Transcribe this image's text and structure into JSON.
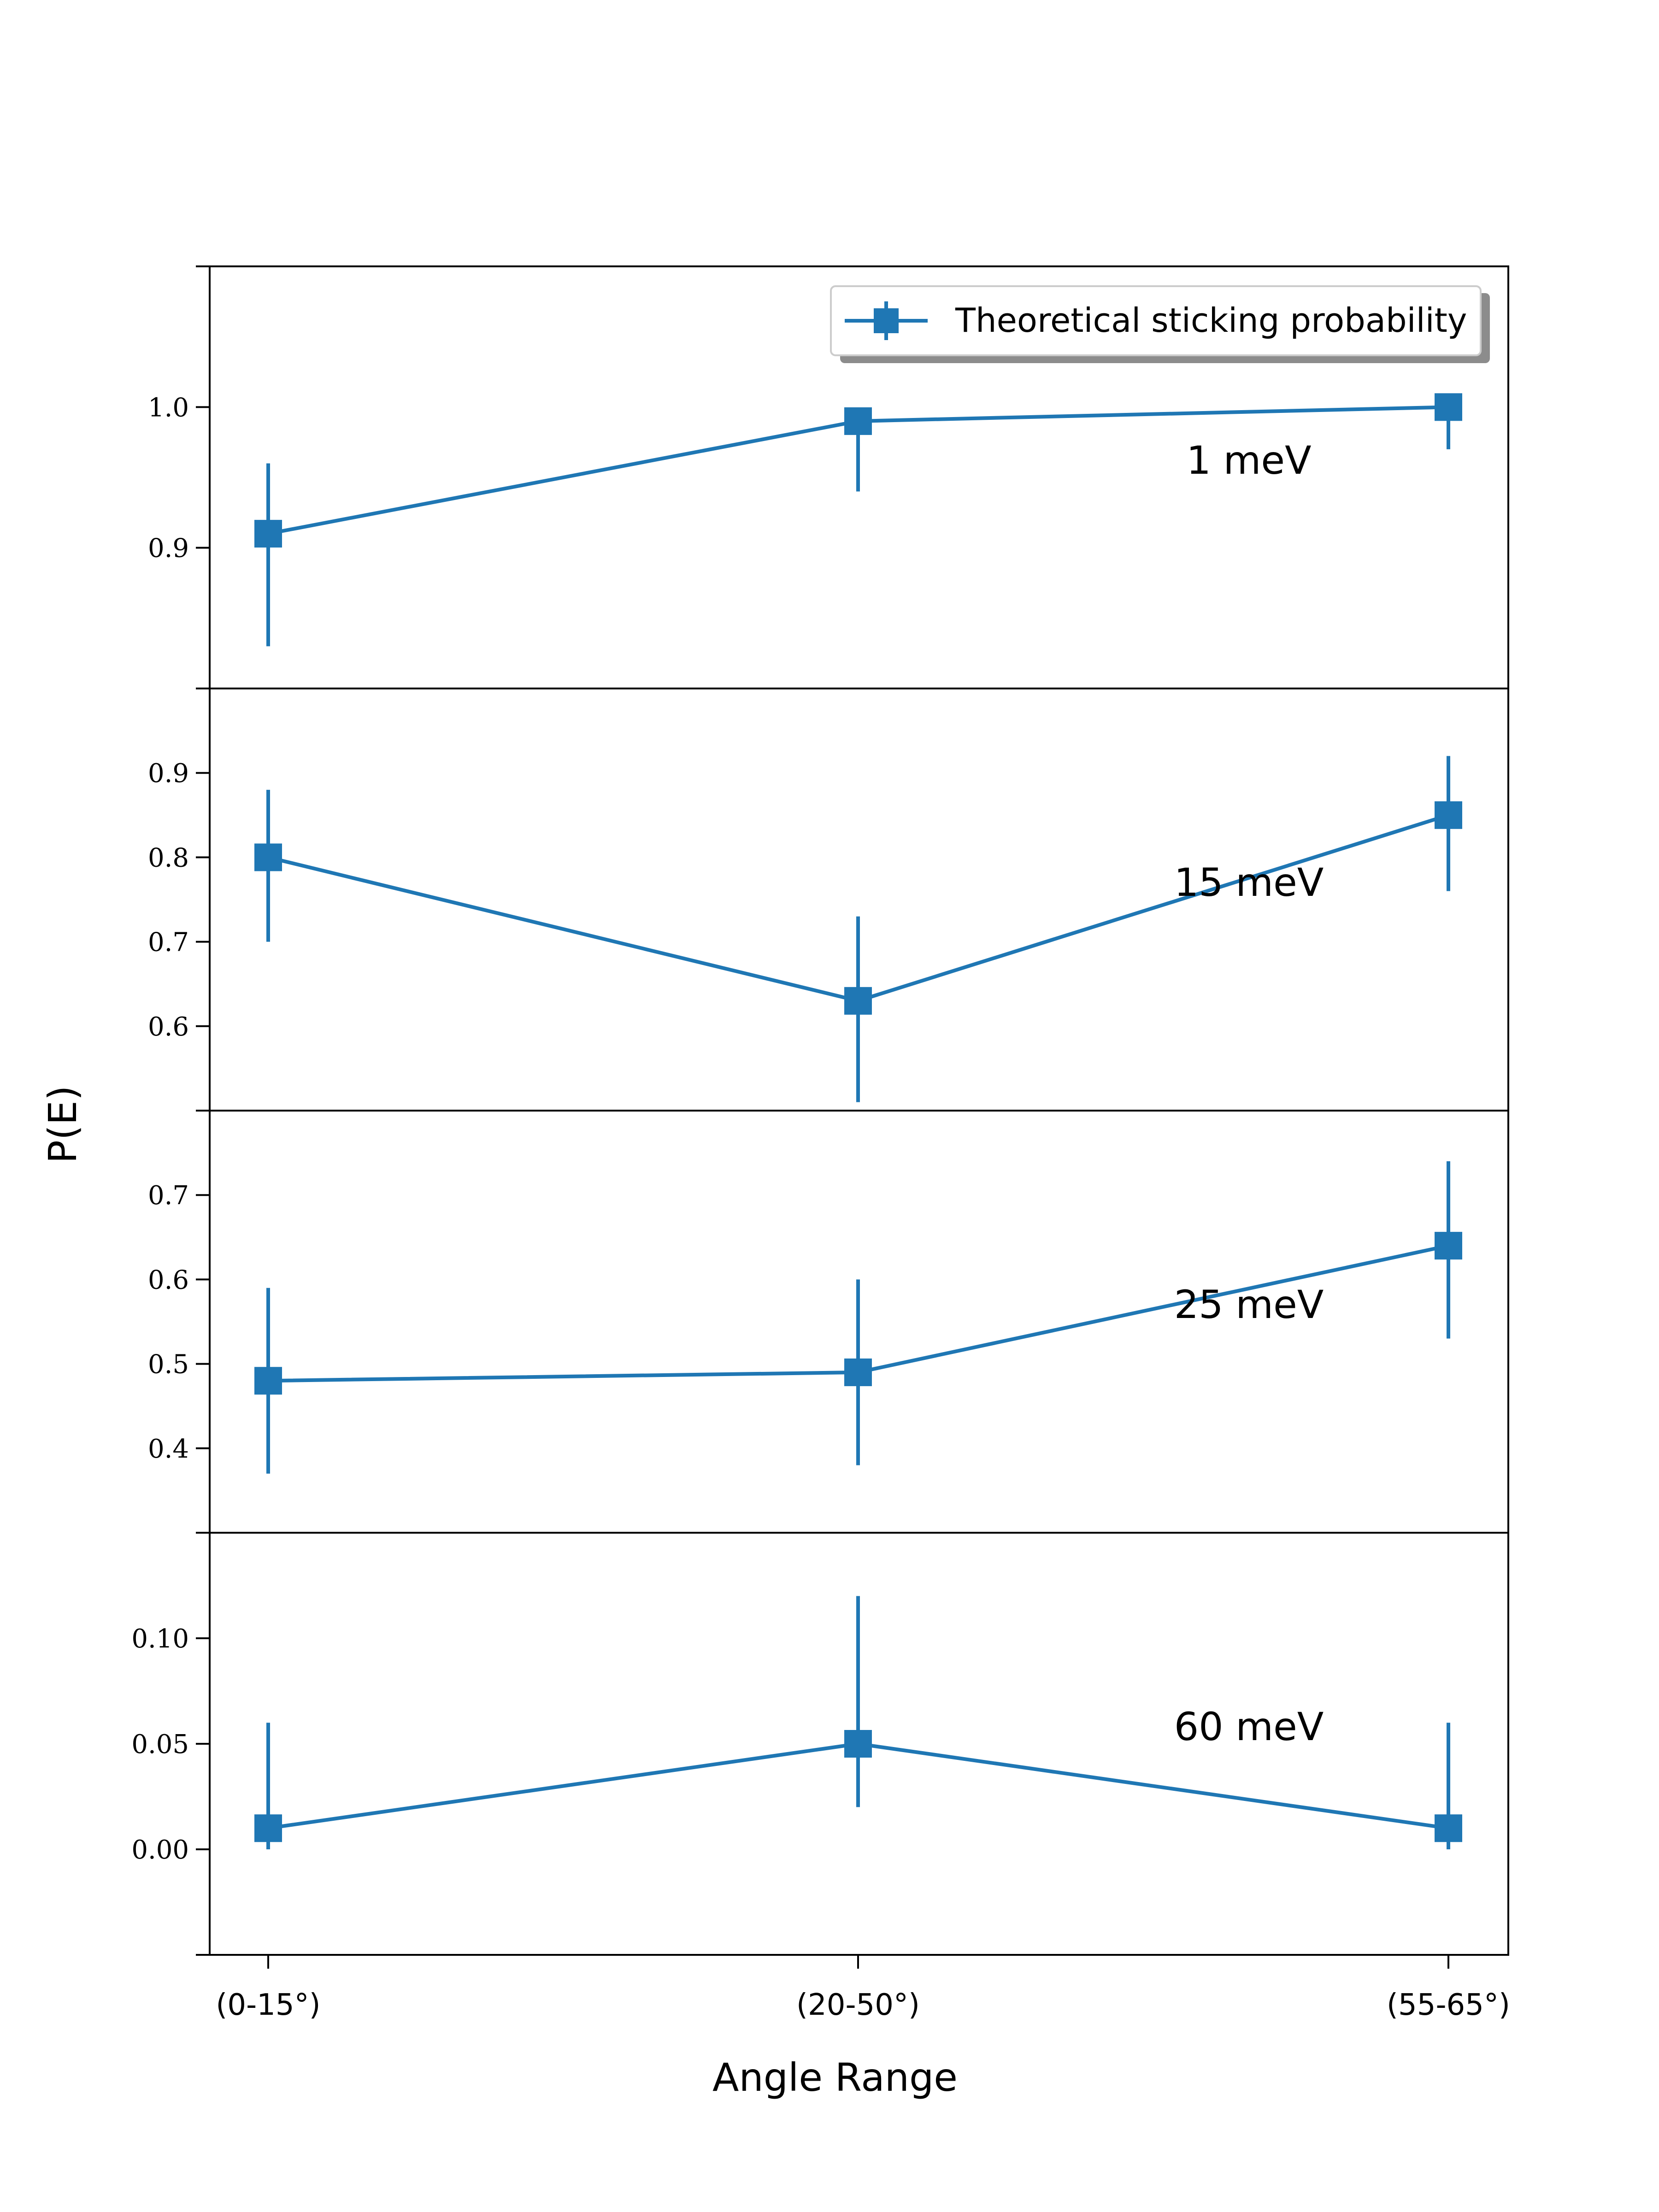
{
  "chart_data": {
    "type": "line",
    "x_categories": [
      "(0-15°)",
      "(20-50°)",
      "(55-65°)"
    ],
    "xlabel": "Angle Range",
    "ylabel": "P(E)",
    "legend": {
      "label": "Theoretical sticking probability",
      "placement": "top-right"
    },
    "color": "#1f77b4",
    "panels": [
      {
        "label": "1 meV",
        "ylim": [
          0.8,
          1.1
        ],
        "yticks": [
          0.9,
          1.0
        ],
        "ytick_labels": [
          "0.9",
          "1.0"
        ],
        "values": [
          0.91,
          0.99,
          1.0
        ],
        "err_low": [
          0.83,
          0.94,
          0.97
        ],
        "err_high": [
          0.96,
          0.99,
          1.0
        ]
      },
      {
        "label": "15 meV",
        "ylim": [
          0.5,
          1.0
        ],
        "yticks": [
          0.6,
          0.7,
          0.8,
          0.9
        ],
        "ytick_labels": [
          "0.6",
          "0.7",
          "0.8",
          "0.9"
        ],
        "values": [
          0.8,
          0.63,
          0.85
        ],
        "err_low": [
          0.7,
          0.51,
          0.76
        ],
        "err_high": [
          0.88,
          0.73,
          0.92
        ]
      },
      {
        "label": "25 meV",
        "ylim": [
          0.3,
          0.8
        ],
        "yticks": [
          0.4,
          0.5,
          0.6,
          0.7
        ],
        "ytick_labels": [
          "0.4",
          "0.5",
          "0.6",
          "0.7"
        ],
        "values": [
          0.48,
          0.49,
          0.64
        ],
        "err_low": [
          0.37,
          0.38,
          0.53
        ],
        "err_high": [
          0.59,
          0.6,
          0.74
        ]
      },
      {
        "label": "60 meV",
        "ylim": [
          -0.05,
          0.15
        ],
        "yticks": [
          0.0,
          0.05,
          0.1
        ],
        "ytick_labels": [
          "0.00",
          "0.05",
          "0.10"
        ],
        "values": [
          0.01,
          0.05,
          0.01
        ],
        "err_low": [
          0.0,
          0.02,
          0.0
        ],
        "err_high": [
          0.06,
          0.12,
          0.06
        ]
      }
    ]
  }
}
